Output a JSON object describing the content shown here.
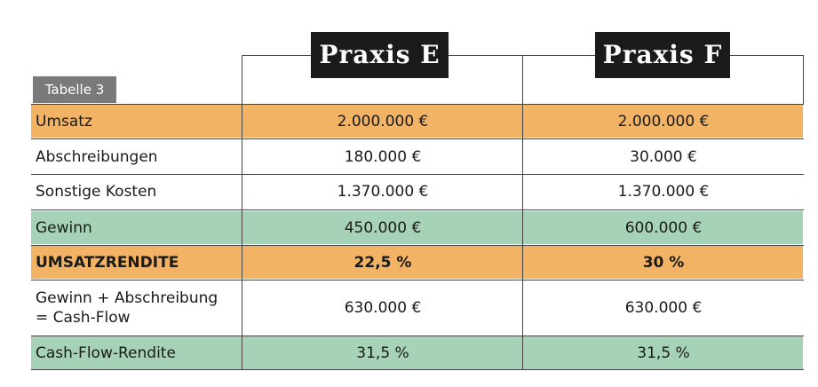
{
  "header": {
    "praxis_e": "Praxis E",
    "praxis_f": "Praxis F",
    "table_tag": "Tabelle 3"
  },
  "rows": [
    {
      "label": "Umsatz",
      "e": "2.000.000 €",
      "f": "2.000.000 €",
      "style": "orange"
    },
    {
      "label": "Abschreibungen",
      "e": "180.000 €",
      "f": "30.000 €",
      "style": "white"
    },
    {
      "label": "Sonstige Kosten",
      "e": "1.370.000 €",
      "f": "1.370.000 €",
      "style": "white"
    },
    {
      "label": "Gewinn",
      "e": "450.000 €",
      "f": "600.000 €",
      "style": "green"
    },
    {
      "label": "UMSATZRENDITE",
      "e": "22,5 %",
      "f": "30 %",
      "style": "orange-bold"
    },
    {
      "label_line1": "Gewinn + Abschreibung",
      "label_line2": "= Cash-Flow",
      "e": "630.000 €",
      "f": "630.000 €",
      "style": "white"
    },
    {
      "label": "Cash-Flow-Rendite",
      "e": "31,5 %",
      "f": "31,5 %",
      "style": "green"
    }
  ],
  "colors": {
    "orange": "#f2b365",
    "green": "#a6d3b7",
    "header_bg": "#1b1b1b",
    "tag_bg": "#7a7a7a"
  }
}
